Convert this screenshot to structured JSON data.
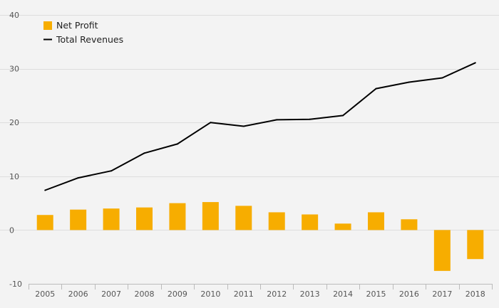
{
  "chart_data": {
    "type": "bar",
    "categories": [
      "2005",
      "2006",
      "2007",
      "2008",
      "2009",
      "2010",
      "2011",
      "2012",
      "2013",
      "2014",
      "2015",
      "2016",
      "2017",
      "2018"
    ],
    "series": [
      {
        "name": "Net Profit",
        "type": "bar",
        "color": "#f7ad00",
        "values": [
          2.8,
          3.8,
          4.0,
          4.2,
          5.0,
          5.2,
          4.5,
          3.3,
          2.9,
          1.2,
          3.3,
          2.0,
          -7.6,
          -5.4
        ]
      },
      {
        "name": "Total Revenues",
        "type": "line",
        "color": "#000000",
        "values": [
          7.4,
          9.7,
          11.0,
          14.3,
          16.0,
          20.0,
          19.3,
          20.5,
          20.6,
          21.3,
          26.3,
          27.5,
          28.3,
          31.1
        ]
      }
    ],
    "ylim": [
      -10,
      40
    ],
    "yticks": [
      "-10",
      "0",
      "10",
      "20",
      "30",
      "40"
    ],
    "title": "",
    "xlabel": "",
    "ylabel": "",
    "grid": true,
    "legend_position": "top-left"
  }
}
